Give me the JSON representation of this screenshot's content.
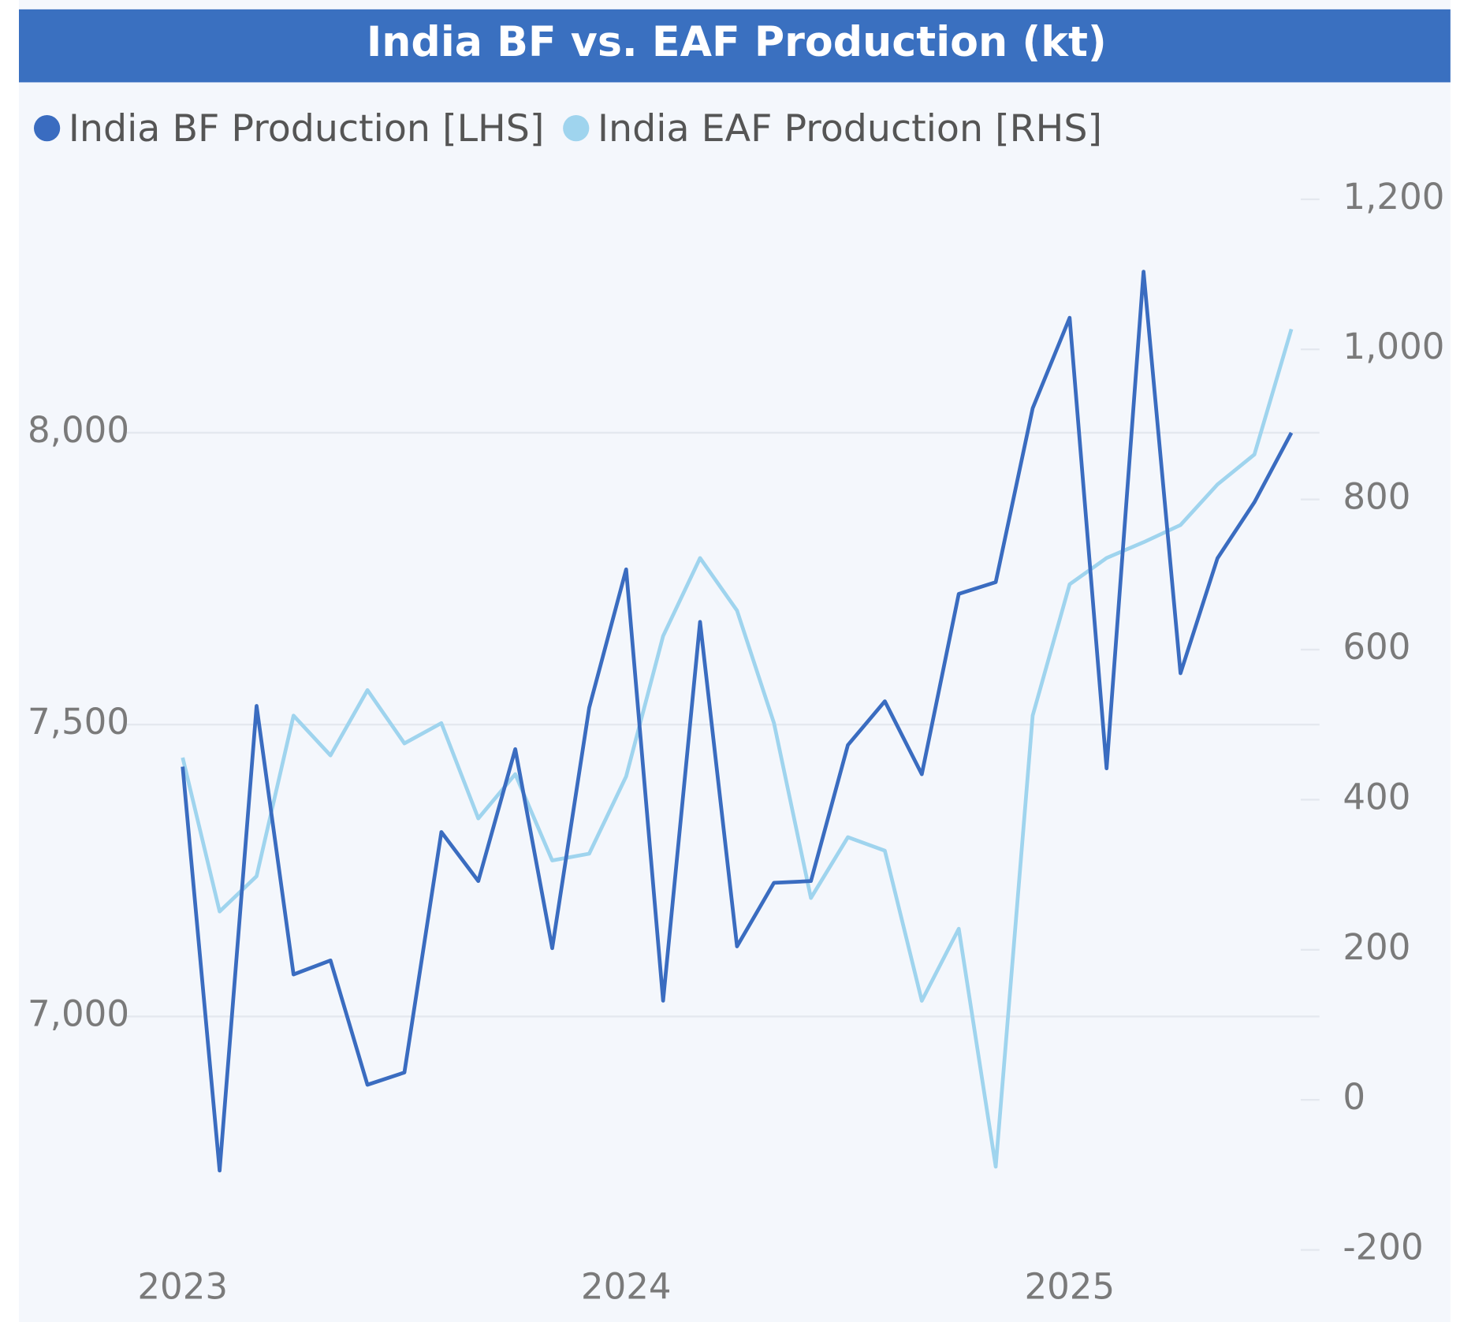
{
  "chart_data": {
    "type": "line",
    "title": "India BF vs. EAF Production (kt)",
    "x": [
      "2023-01",
      "2023-02",
      "2023-03",
      "2023-04",
      "2023-05",
      "2023-06",
      "2023-07",
      "2023-08",
      "2023-09",
      "2023-10",
      "2023-11",
      "2023-12",
      "2024-01",
      "2024-02",
      "2024-03",
      "2024-04",
      "2024-05",
      "2024-06",
      "2024-07",
      "2024-08",
      "2024-09",
      "2024-10",
      "2024-11",
      "2024-12",
      "2025-01",
      "2025-02",
      "2025-03",
      "2025-04",
      "2025-05",
      "2025-06",
      "2025-07"
    ],
    "xlim": [
      "2023-01",
      "2025-07"
    ],
    "xticks": [
      {
        "value": "2023-01",
        "label": "2023"
      },
      {
        "value": "2024-01",
        "label": "2024"
      },
      {
        "value": "2025-01",
        "label": "2025"
      }
    ],
    "series": [
      {
        "name": "India BF Production [LHS]",
        "color": "#3a6cc0",
        "axis": "y",
        "values": [
          7428,
          6736,
          7532,
          7072,
          7096,
          6883,
          6904,
          7316,
          7232,
          7458,
          7117,
          7529,
          7766,
          7027,
          7676,
          7120,
          7229,
          7232,
          7465,
          7540,
          7415,
          7724,
          7744,
          8042,
          8197,
          7425,
          8276,
          7588,
          7785,
          7881,
          8000
        ]
      },
      {
        "name": "India EAF Production [RHS]",
        "color": "#9fd4ee",
        "axis": "y2",
        "values": [
          456,
          251,
          298,
          512,
          459,
          546,
          475,
          502,
          375,
          434,
          319,
          328,
          431,
          618,
          722,
          652,
          502,
          269,
          350,
          332,
          132,
          228,
          -89,
          512,
          687,
          722,
          743,
          766,
          820,
          860,
          1027
        ]
      }
    ],
    "ylim": [
      6600,
      8400
    ],
    "yticks": [
      {
        "value": 7000,
        "label": "7,000"
      },
      {
        "value": 7500,
        "label": "7,500"
      },
      {
        "value": 8000,
        "label": "8,000"
      }
    ],
    "y2lim": [
      -200,
      1200
    ],
    "y2ticks": [
      -200,
      0,
      200,
      400,
      600,
      800,
      {
        "value": 1000,
        "label": "1,000"
      },
      {
        "value": 1200,
        "label": "1,200"
      }
    ],
    "grid": true
  }
}
